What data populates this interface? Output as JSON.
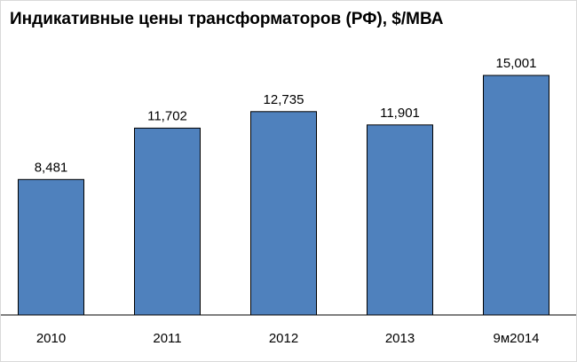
{
  "chart_data": {
    "type": "bar",
    "title": "Индикативные цены трансформаторов (РФ), $/МВА",
    "categories": [
      "2010",
      "2011",
      "2012",
      "2013",
      "9м2014"
    ],
    "values": [
      8481,
      11702,
      12735,
      11901,
      15001
    ],
    "value_labels": [
      "8,481",
      "11,702",
      "12,735",
      "11,901",
      "15,001"
    ],
    "xlabel": "",
    "ylabel": "",
    "ylim": [
      0,
      18000
    ],
    "grid": false,
    "legend": "none",
    "colors": {
      "bar": "#4f81bd",
      "bar_border": "#000000",
      "axis": "#000000"
    }
  }
}
